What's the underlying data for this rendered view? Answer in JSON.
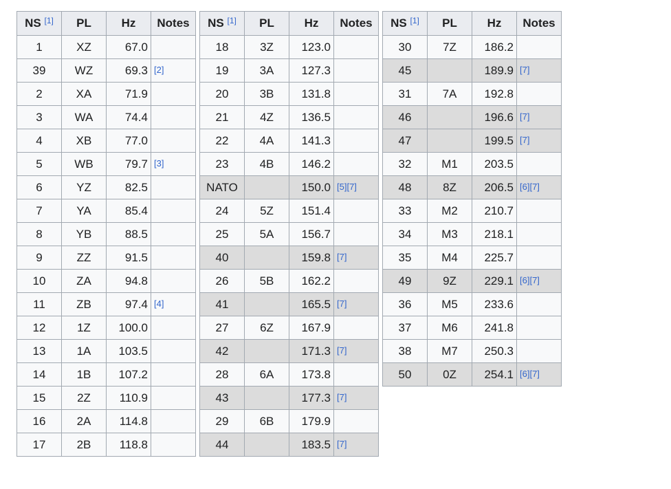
{
  "headers": {
    "ns": "NS",
    "ns_ref": "[1]",
    "pl": "PL",
    "hz": "Hz",
    "notes": "Notes"
  },
  "tables": [
    {
      "rows": [
        {
          "ns": "1",
          "pl": "XZ",
          "hz": "67.0",
          "notes": "",
          "shaded": false
        },
        {
          "ns": "39",
          "pl": "WZ",
          "hz": "69.3",
          "notes": "[2]",
          "shaded": false
        },
        {
          "ns": "2",
          "pl": "XA",
          "hz": "71.9",
          "notes": "",
          "shaded": false
        },
        {
          "ns": "3",
          "pl": "WA",
          "hz": "74.4",
          "notes": "",
          "shaded": false
        },
        {
          "ns": "4",
          "pl": "XB",
          "hz": "77.0",
          "notes": "",
          "shaded": false
        },
        {
          "ns": "5",
          "pl": "WB",
          "hz": "79.7",
          "notes": "[3]",
          "shaded": false
        },
        {
          "ns": "6",
          "pl": "YZ",
          "hz": "82.5",
          "notes": "",
          "shaded": false
        },
        {
          "ns": "7",
          "pl": "YA",
          "hz": "85.4",
          "notes": "",
          "shaded": false
        },
        {
          "ns": "8",
          "pl": "YB",
          "hz": "88.5",
          "notes": "",
          "shaded": false
        },
        {
          "ns": "9",
          "pl": "ZZ",
          "hz": "91.5",
          "notes": "",
          "shaded": false
        },
        {
          "ns": "10",
          "pl": "ZA",
          "hz": "94.8",
          "notes": "",
          "shaded": false
        },
        {
          "ns": "11",
          "pl": "ZB",
          "hz": "97.4",
          "notes": "[4]",
          "shaded": false
        },
        {
          "ns": "12",
          "pl": "1Z",
          "hz": "100.0",
          "notes": "",
          "shaded": false
        },
        {
          "ns": "13",
          "pl": "1A",
          "hz": "103.5",
          "notes": "",
          "shaded": false
        },
        {
          "ns": "14",
          "pl": "1B",
          "hz": "107.2",
          "notes": "",
          "shaded": false
        },
        {
          "ns": "15",
          "pl": "2Z",
          "hz": "110.9",
          "notes": "",
          "shaded": false
        },
        {
          "ns": "16",
          "pl": "2A",
          "hz": "114.8",
          "notes": "",
          "shaded": false
        },
        {
          "ns": "17",
          "pl": "2B",
          "hz": "118.8",
          "notes": "",
          "shaded": false
        }
      ]
    },
    {
      "rows": [
        {
          "ns": "18",
          "pl": "3Z",
          "hz": "123.0",
          "notes": "",
          "shaded": false
        },
        {
          "ns": "19",
          "pl": "3A",
          "hz": "127.3",
          "notes": "",
          "shaded": false
        },
        {
          "ns": "20",
          "pl": "3B",
          "hz": "131.8",
          "notes": "",
          "shaded": false
        },
        {
          "ns": "21",
          "pl": "4Z",
          "hz": "136.5",
          "notes": "",
          "shaded": false
        },
        {
          "ns": "22",
          "pl": "4A",
          "hz": "141.3",
          "notes": "",
          "shaded": false
        },
        {
          "ns": "23",
          "pl": "4B",
          "hz": "146.2",
          "notes": "",
          "shaded": false
        },
        {
          "ns": "NATO",
          "pl": "",
          "hz": "150.0",
          "notes": "[5][7]",
          "shaded": true
        },
        {
          "ns": "24",
          "pl": "5Z",
          "hz": "151.4",
          "notes": "",
          "shaded": false
        },
        {
          "ns": "25",
          "pl": "5A",
          "hz": "156.7",
          "notes": "",
          "shaded": false
        },
        {
          "ns": "40",
          "pl": "",
          "hz": "159.8",
          "notes": "[7]",
          "shaded": true
        },
        {
          "ns": "26",
          "pl": "5B",
          "hz": "162.2",
          "notes": "",
          "shaded": false
        },
        {
          "ns": "41",
          "pl": "",
          "hz": "165.5",
          "notes": "[7]",
          "shaded": true
        },
        {
          "ns": "27",
          "pl": "6Z",
          "hz": "167.9",
          "notes": "",
          "shaded": false
        },
        {
          "ns": "42",
          "pl": "",
          "hz": "171.3",
          "notes": "[7]",
          "shaded": true
        },
        {
          "ns": "28",
          "pl": "6A",
          "hz": "173.8",
          "notes": "",
          "shaded": false
        },
        {
          "ns": "43",
          "pl": "",
          "hz": "177.3",
          "notes": "[7]",
          "shaded": true
        },
        {
          "ns": "29",
          "pl": "6B",
          "hz": "179.9",
          "notes": "",
          "shaded": false
        },
        {
          "ns": "44",
          "pl": "",
          "hz": "183.5",
          "notes": "[7]",
          "shaded": true
        }
      ]
    },
    {
      "rows": [
        {
          "ns": "30",
          "pl": "7Z",
          "hz": "186.2",
          "notes": "",
          "shaded": false
        },
        {
          "ns": "45",
          "pl": "",
          "hz": "189.9",
          "notes": "[7]",
          "shaded": true
        },
        {
          "ns": "31",
          "pl": "7A",
          "hz": "192.8",
          "notes": "",
          "shaded": false
        },
        {
          "ns": "46",
          "pl": "",
          "hz": "196.6",
          "notes": "[7]",
          "shaded": true
        },
        {
          "ns": "47",
          "pl": "",
          "hz": "199.5",
          "notes": "[7]",
          "shaded": true
        },
        {
          "ns": "32",
          "pl": "M1",
          "hz": "203.5",
          "notes": "",
          "shaded": false
        },
        {
          "ns": "48",
          "pl": "8Z",
          "hz": "206.5",
          "notes": "[6][7]",
          "shaded": true
        },
        {
          "ns": "33",
          "pl": "M2",
          "hz": "210.7",
          "notes": "",
          "shaded": false
        },
        {
          "ns": "34",
          "pl": "M3",
          "hz": "218.1",
          "notes": "",
          "shaded": false
        },
        {
          "ns": "35",
          "pl": "M4",
          "hz": "225.7",
          "notes": "",
          "shaded": false
        },
        {
          "ns": "49",
          "pl": "9Z",
          "hz": "229.1",
          "notes": "[6][7]",
          "shaded": true
        },
        {
          "ns": "36",
          "pl": "M5",
          "hz": "233.6",
          "notes": "",
          "shaded": false
        },
        {
          "ns": "37",
          "pl": "M6",
          "hz": "241.8",
          "notes": "",
          "shaded": false
        },
        {
          "ns": "38",
          "pl": "M7",
          "hz": "250.3",
          "notes": "",
          "shaded": false
        },
        {
          "ns": "50",
          "pl": "0Z",
          "hz": "254.1",
          "notes": "[6][7]",
          "shaded": true
        }
      ]
    }
  ]
}
